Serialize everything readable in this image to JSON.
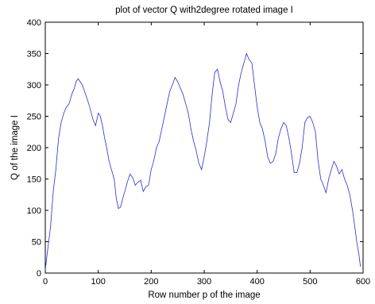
{
  "chart_data": {
    "type": "line",
    "title": "plot of vector Q with2degree rotated image I",
    "xlabel": "Row number p of the image",
    "ylabel": "Q of the image I",
    "xlim": [
      0,
      600
    ],
    "ylim": [
      0,
      400
    ],
    "xticks": [
      0,
      100,
      200,
      300,
      400,
      500,
      600
    ],
    "yticks": [
      0,
      50,
      100,
      150,
      200,
      250,
      300,
      350,
      400
    ],
    "grid": false,
    "colors": {
      "line": "#2b2bd6",
      "axes": "#000000"
    },
    "series": [
      {
        "points": [
          [
            0,
            5
          ],
          [
            5,
            40
          ],
          [
            10,
            75
          ],
          [
            15,
            130
          ],
          [
            20,
            165
          ],
          [
            25,
            215
          ],
          [
            30,
            240
          ],
          [
            35,
            255
          ],
          [
            40,
            265
          ],
          [
            45,
            270
          ],
          [
            50,
            285
          ],
          [
            55,
            295
          ],
          [
            58,
            305
          ],
          [
            62,
            310
          ],
          [
            66,
            305
          ],
          [
            70,
            300
          ],
          [
            74,
            290
          ],
          [
            78,
            280
          ],
          [
            82,
            270
          ],
          [
            86,
            258
          ],
          [
            90,
            245
          ],
          [
            95,
            235
          ],
          [
            100,
            255
          ],
          [
            104,
            250
          ],
          [
            108,
            235
          ],
          [
            112,
            215
          ],
          [
            116,
            200
          ],
          [
            120,
            180
          ],
          [
            125,
            165
          ],
          [
            130,
            150
          ],
          [
            134,
            120
          ],
          [
            138,
            103
          ],
          [
            142,
            105
          ],
          [
            146,
            118
          ],
          [
            150,
            130
          ],
          [
            155,
            145
          ],
          [
            160,
            158
          ],
          [
            165,
            152
          ],
          [
            170,
            140
          ],
          [
            175,
            145
          ],
          [
            180,
            148
          ],
          [
            185,
            130
          ],
          [
            190,
            138
          ],
          [
            195,
            140
          ],
          [
            200,
            165
          ],
          [
            205,
            180
          ],
          [
            210,
            200
          ],
          [
            215,
            210
          ],
          [
            220,
            230
          ],
          [
            225,
            250
          ],
          [
            230,
            270
          ],
          [
            235,
            290
          ],
          [
            240,
            300
          ],
          [
            245,
            312
          ],
          [
            250,
            305
          ],
          [
            255,
            295
          ],
          [
            260,
            285
          ],
          [
            265,
            270
          ],
          [
            270,
            255
          ],
          [
            275,
            230
          ],
          [
            280,
            210
          ],
          [
            285,
            195
          ],
          [
            290,
            175
          ],
          [
            295,
            165
          ],
          [
            300,
            185
          ],
          [
            305,
            210
          ],
          [
            310,
            240
          ],
          [
            315,
            285
          ],
          [
            320,
            320
          ],
          [
            325,
            325
          ],
          [
            330,
            305
          ],
          [
            335,
            290
          ],
          [
            340,
            265
          ],
          [
            345,
            245
          ],
          [
            350,
            240
          ],
          [
            355,
            255
          ],
          [
            360,
            270
          ],
          [
            365,
            300
          ],
          [
            370,
            320
          ],
          [
            375,
            335
          ],
          [
            380,
            350
          ],
          [
            385,
            340
          ],
          [
            390,
            335
          ],
          [
            395,
            300
          ],
          [
            400,
            265
          ],
          [
            405,
            240
          ],
          [
            410,
            230
          ],
          [
            415,
            210
          ],
          [
            420,
            185
          ],
          [
            425,
            175
          ],
          [
            430,
            178
          ],
          [
            435,
            190
          ],
          [
            440,
            215
          ],
          [
            445,
            230
          ],
          [
            450,
            240
          ],
          [
            455,
            235
          ],
          [
            460,
            215
          ],
          [
            465,
            190
          ],
          [
            470,
            160
          ],
          [
            475,
            160
          ],
          [
            480,
            175
          ],
          [
            485,
            200
          ],
          [
            490,
            240
          ],
          [
            495,
            248
          ],
          [
            500,
            250
          ],
          [
            505,
            240
          ],
          [
            510,
            225
          ],
          [
            515,
            180
          ],
          [
            520,
            150
          ],
          [
            525,
            140
          ],
          [
            530,
            128
          ],
          [
            535,
            150
          ],
          [
            540,
            165
          ],
          [
            545,
            178
          ],
          [
            550,
            170
          ],
          [
            555,
            158
          ],
          [
            560,
            165
          ],
          [
            565,
            150
          ],
          [
            570,
            140
          ],
          [
            575,
            125
          ],
          [
            580,
            100
          ],
          [
            585,
            70
          ],
          [
            588,
            50
          ],
          [
            592,
            30
          ],
          [
            595,
            10
          ]
        ]
      }
    ]
  }
}
